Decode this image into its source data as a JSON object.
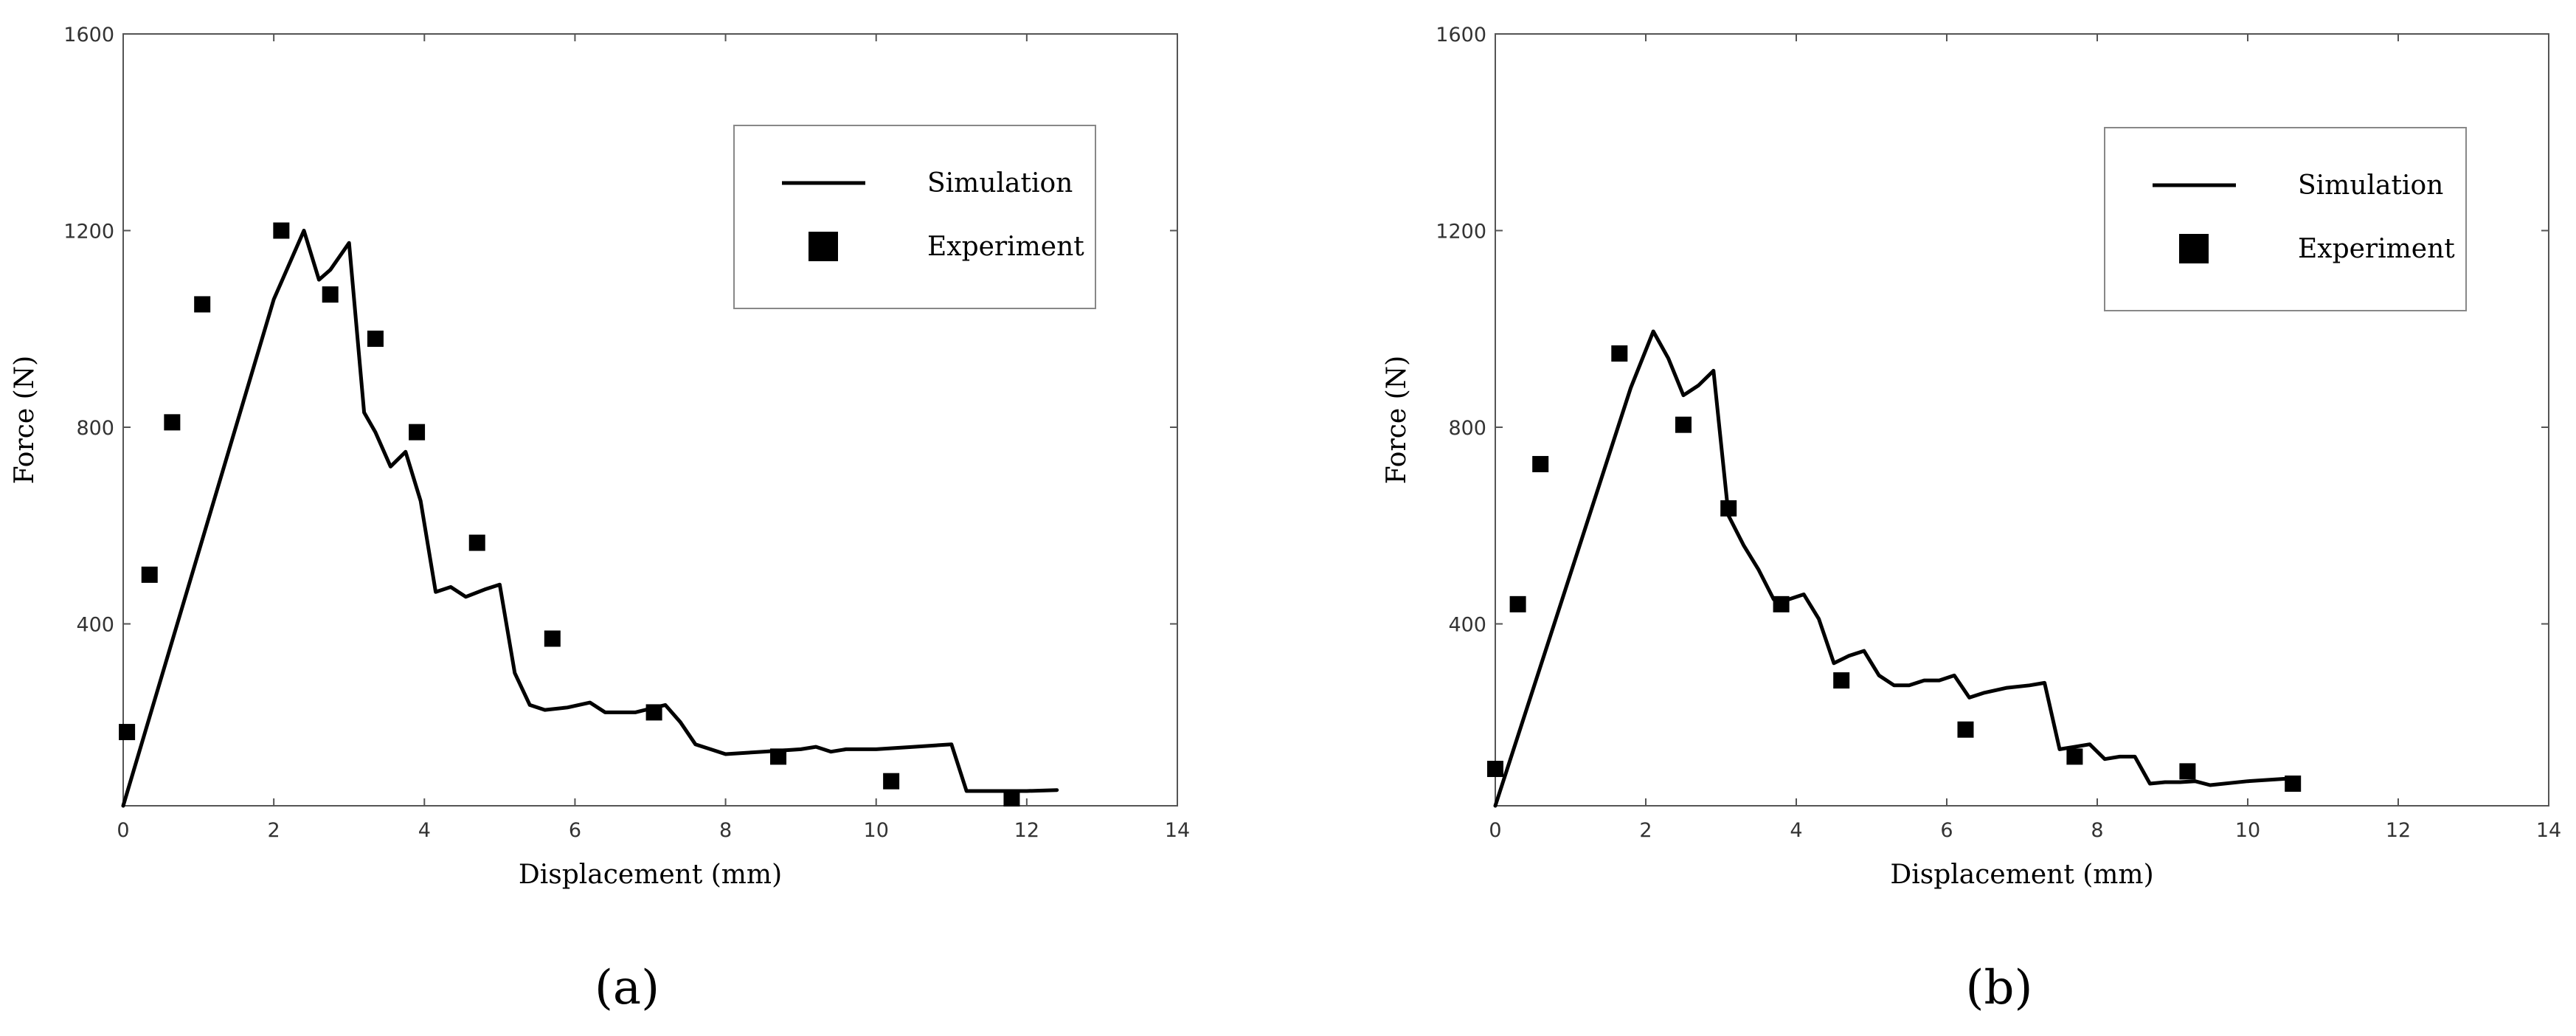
{
  "colors": {
    "line": "#000000",
    "marker": "#000000",
    "axis": "#555555",
    "legend_border": "#888888"
  },
  "chart_data": [
    {
      "type": "line",
      "panel_label": "(a)",
      "xlabel": "Displacement (mm)",
      "ylabel": "Force (N)",
      "xlim": [
        0,
        14
      ],
      "ylim": [
        30,
        1600
      ],
      "xticks": [
        0,
        2,
        4,
        6,
        8,
        10,
        12,
        14
      ],
      "yticks": [
        400,
        800,
        1200,
        1600
      ],
      "grid": false,
      "legend_position": "top-right",
      "series": [
        {
          "name": "Simulation",
          "kind": "line",
          "x": [
            0,
            2.0,
            2.4,
            2.6,
            2.75,
            3.0,
            3.2,
            3.35,
            3.55,
            3.75,
            3.95,
            4.15,
            4.35,
            4.55,
            4.8,
            5.0,
            5.2,
            5.4,
            5.6,
            5.9,
            6.2,
            6.4,
            6.8,
            7.2,
            7.4,
            7.6,
            8.0,
            8.5,
            9.0,
            9.2,
            9.4,
            9.6,
            10.0,
            10.5,
            11.0,
            11.2,
            11.5,
            12.0,
            12.4
          ],
          "y": [
            30,
            1060,
            1200,
            1100,
            1120,
            1175,
            830,
            790,
            720,
            750,
            650,
            465,
            475,
            455,
            470,
            480,
            300,
            235,
            225,
            230,
            240,
            220,
            220,
            235,
            200,
            155,
            135,
            140,
            145,
            150,
            140,
            145,
            145,
            150,
            155,
            60,
            60,
            60,
            62
          ]
        },
        {
          "name": "Experiment",
          "kind": "scatter",
          "x": [
            0.05,
            0.35,
            0.65,
            1.05,
            2.1,
            2.75,
            3.35,
            3.9,
            4.7,
            5.7,
            7.05,
            8.7,
            10.2,
            11.8
          ],
          "y": [
            180,
            500,
            810,
            1050,
            1200,
            1070,
            980,
            790,
            565,
            370,
            220,
            130,
            80,
            45
          ]
        }
      ]
    },
    {
      "type": "line",
      "panel_label": "(b)",
      "xlabel": "Displacement (mm)",
      "ylabel": "Force (N)",
      "xlim": [
        0,
        14
      ],
      "ylim": [
        30,
        1600
      ],
      "xticks": [
        0,
        2,
        4,
        6,
        8,
        10,
        12,
        14
      ],
      "yticks": [
        400,
        800,
        1200,
        1600
      ],
      "grid": false,
      "legend_position": "top-right",
      "series": [
        {
          "name": "Simulation",
          "kind": "line",
          "x": [
            0,
            1.8,
            2.1,
            2.3,
            2.5,
            2.7,
            2.9,
            3.1,
            3.3,
            3.5,
            3.7,
            3.9,
            4.1,
            4.3,
            4.5,
            4.7,
            4.9,
            5.1,
            5.3,
            5.5,
            5.7,
            5.9,
            6.1,
            6.3,
            6.5,
            6.8,
            7.1,
            7.3,
            7.5,
            7.7,
            7.9,
            8.1,
            8.3,
            8.5,
            8.7,
            8.9,
            9.1,
            9.3,
            9.5,
            10.0,
            10.5
          ],
          "y": [
            30,
            880,
            995,
            940,
            865,
            885,
            915,
            620,
            560,
            510,
            450,
            450,
            460,
            410,
            320,
            335,
            345,
            295,
            275,
            275,
            285,
            285,
            295,
            250,
            260,
            270,
            275,
            280,
            145,
            150,
            155,
            125,
            130,
            130,
            75,
            78,
            78,
            80,
            72,
            80,
            85
          ]
        },
        {
          "name": "Experiment",
          "kind": "scatter",
          "x": [
            0.0,
            0.3,
            0.6,
            1.65,
            2.5,
            3.1,
            3.8,
            4.6,
            6.25,
            7.7,
            9.2,
            10.6
          ],
          "y": [
            105,
            440,
            725,
            950,
            805,
            635,
            440,
            285,
            185,
            130,
            100,
            75
          ]
        }
      ]
    }
  ]
}
